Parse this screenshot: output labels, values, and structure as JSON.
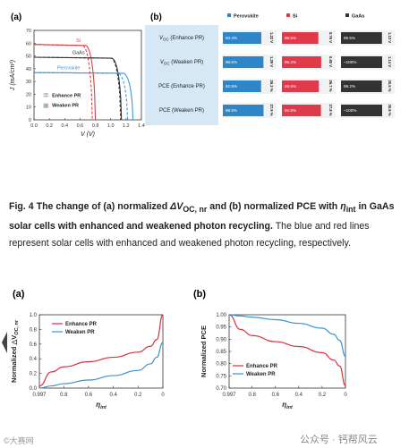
{
  "fig_a": {
    "label": "(a)",
    "xlabel": "V (V)",
    "ylabel": "J (mA/cm²)",
    "xticks": [
      "0.0",
      "0.2",
      "0.4",
      "0.6",
      "0.8",
      "1.0",
      "1.2",
      "1.4"
    ],
    "yticks": [
      "0",
      "10",
      "20",
      "30",
      "40",
      "50",
      "60",
      "70"
    ],
    "curve_labels": {
      "si": "Si",
      "gaas": "GaAs",
      "perovskite": "Perovskite"
    },
    "legend": {
      "enhance": "Enhance PR",
      "weaken": "Weaken PR"
    },
    "colors": {
      "si": "#e03a3a",
      "gaas": "#333333",
      "perovskite": "#3a9ad9"
    }
  },
  "fig_b": {
    "label": "(b)",
    "columns": [
      {
        "name": "Perovskite",
        "color": "#2e86c9"
      },
      {
        "name": "Si",
        "color": "#e03a4a"
      },
      {
        "name": "GaAs",
        "color": "#333333"
      }
    ],
    "rows": [
      {
        "label_prefix": "V",
        "label_sub": "OC",
        "label_suffix": " (Enhance PR)",
        "cells": [
          {
            "pct": "93.4%",
            "val": "1.22 V",
            "fill": 0.934
          },
          {
            "pct": "88.5%",
            "val": "0.76 V",
            "fill": 0.885
          },
          {
            "pct": "99.5%",
            "val": "1.13 V",
            "fill": 0.995
          }
        ]
      },
      {
        "label_prefix": "V",
        "label_sub": "OC",
        "label_suffix": " (Weaken PR)",
        "cells": [
          {
            "pct": "98.6%",
            "val": "1.29 V",
            "fill": 0.986
          },
          {
            "pct": "95.4%",
            "val": "0.80 V",
            "fill": 0.954
          },
          {
            "pct": "~100%",
            "val": "1.14 V",
            "fill": 1.0
          }
        ]
      },
      {
        "label_prefix": "PCE",
        "label_sub": "",
        "label_suffix": " (Enhance PR)",
        "cells": [
          {
            "pct": "92.9%",
            "val": "26.3 %",
            "fill": 0.929
          },
          {
            "pct": "89.8%",
            "val": "26.7 %",
            "fill": 0.898
          },
          {
            "pct": "99.2%",
            "val": "30.5 %",
            "fill": 0.992
          }
        ]
      },
      {
        "label_prefix": "PCE",
        "label_sub": "",
        "label_suffix": " (Weaken PR)",
        "cells": [
          {
            "pct": "98.9%",
            "val": "27.9 %",
            "fill": 0.989
          },
          {
            "pct": "94.9%",
            "val": "27.8 %",
            "fill": 0.949
          },
          {
            "pct": "~100%",
            "val": "30.8 %",
            "fill": 1.0
          }
        ]
      }
    ]
  },
  "caption": {
    "bold1": "Fig. 4 The change of (a) normalized ",
    "bold_delta": "ΔV",
    "bold_sub": "OC, nr",
    "bold2": " and (b) normalized PCE with ",
    "bold_eta": "η",
    "bold_eta_sub": "int",
    "bold3": " in GaAs solar cells with enhanced and weakened photon recycling.",
    "normal": " The blue and red lines represent solar cells with enhanced and weakened photon recycling, respectively."
  },
  "bottom_a": {
    "label": "(a)",
    "ylabel": "Normalized △V",
    "ylabel_sub": "OC, nr",
    "xlabel": "η",
    "xlabel_sub": "int",
    "xticks": [
      "0.997",
      "0.8",
      "0.6",
      "0.4",
      "0.2",
      "0"
    ],
    "yticks": [
      "0.0",
      "0.2",
      "0.4",
      "0.6",
      "0.8",
      "1.0"
    ],
    "legend": {
      "enhance": "Enhance PR",
      "weaken": "Weaken PR"
    }
  },
  "bottom_b": {
    "label": "(b)",
    "ylabel": "Normalized PCE",
    "xlabel": "η",
    "xlabel_sub": "int",
    "xticks": [
      "0.997",
      "0.8",
      "0.6",
      "0.4",
      "0.2",
      "0"
    ],
    "yticks": [
      "0.70",
      "0.75",
      "0.80",
      "0.85",
      "0.90",
      "0.95",
      "1.00"
    ],
    "legend": {
      "enhance": "Enhance PR",
      "weaken": "Weaken PR"
    }
  },
  "chart_data": [
    {
      "type": "line",
      "title": "",
      "xlabel": "V (V)",
      "ylabel": "J (mA/cm²)",
      "xlim": [
        0,
        1.4
      ],
      "ylim": [
        0,
        70
      ],
      "series": [
        {
          "name": "Si",
          "jsc": 59,
          "voc_enhance": 0.76,
          "voc_weaken": 0.8
        },
        {
          "name": "GaAs",
          "jsc": 49,
          "voc_enhance": 1.13,
          "voc_weaken": 1.14
        },
        {
          "name": "Perovskite",
          "jsc": 37,
          "voc_enhance": 1.22,
          "voc_weaken": 1.29
        }
      ],
      "legend": [
        "Enhance PR",
        "Weaken PR"
      ]
    },
    {
      "type": "table",
      "title": "",
      "columns": [
        "Perovskite",
        "Si",
        "GaAs"
      ],
      "rows": [
        "VOC (Enhance PR)",
        "VOC (Weaken PR)",
        "PCE (Enhance PR)",
        "PCE (Weaken PR)"
      ]
    },
    {
      "type": "line",
      "title": "",
      "xlabel": "ηint",
      "ylabel": "Normalized △VOC, nr",
      "xlim": [
        0.997,
        0
      ],
      "ylim": [
        0,
        1.0
      ],
      "series": [
        {
          "name": "Enhance PR",
          "x": [
            0.997,
            0.9,
            0.8,
            0.6,
            0.4,
            0.2,
            0.1,
            0.05,
            0
          ],
          "y": [
            0.03,
            0.22,
            0.29,
            0.36,
            0.42,
            0.49,
            0.57,
            0.66,
            1.0
          ]
        },
        {
          "name": "Weaken PR",
          "x": [
            0.997,
            0.9,
            0.8,
            0.6,
            0.4,
            0.2,
            0.1,
            0.05,
            0
          ],
          "y": [
            0.0,
            0.03,
            0.06,
            0.11,
            0.17,
            0.24,
            0.33,
            0.42,
            0.62
          ]
        }
      ]
    },
    {
      "type": "line",
      "title": "",
      "xlabel": "ηint",
      "ylabel": "Normalized PCE",
      "xlim": [
        0.997,
        0
      ],
      "ylim": [
        0.7,
        1.0
      ],
      "series": [
        {
          "name": "Enhance PR",
          "x": [
            0.997,
            0.9,
            0.8,
            0.6,
            0.4,
            0.2,
            0.1,
            0.05,
            0
          ],
          "y": [
            1.0,
            0.94,
            0.915,
            0.89,
            0.87,
            0.845,
            0.815,
            0.79,
            0.71
          ]
        },
        {
          "name": "Weaken PR",
          "x": [
            0.997,
            0.9,
            0.8,
            0.6,
            0.4,
            0.2,
            0.1,
            0.05,
            0
          ],
          "y": [
            1.0,
            0.995,
            0.99,
            0.98,
            0.965,
            0.945,
            0.92,
            0.895,
            0.83
          ]
        }
      ]
    }
  ],
  "watermark": {
    "left": "©大赛网",
    "right": "公众号 · 钙帮风云"
  }
}
